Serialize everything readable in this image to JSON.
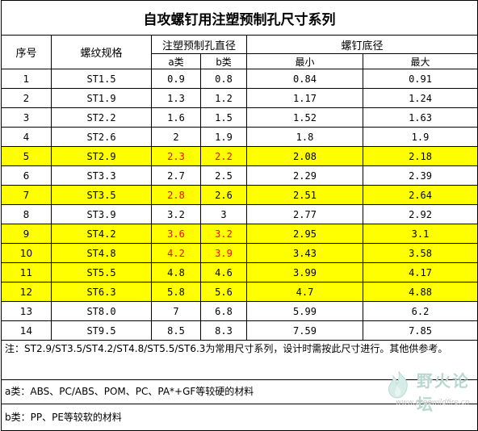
{
  "title": "自攻螺钉用注塑预制孔尺寸系列",
  "headers": {
    "index": "序号",
    "spec": "螺纹规格",
    "hole_group": "注塑预制孔直径",
    "hole_a": "a类",
    "hole_b": "b类",
    "screw_group": "螺钉底径",
    "screw_min": "最小",
    "screw_max": "最大"
  },
  "highlight_color": "#ffff00",
  "emphasis_color": "#ff0000",
  "rows": [
    {
      "idx": "1",
      "spec": "ST1.5",
      "a": "0.9",
      "b": "0.8",
      "min": "0.84",
      "max": "0.91",
      "highlight": false,
      "red_a": false,
      "red_b": false
    },
    {
      "idx": "2",
      "spec": "ST1.9",
      "a": "1.3",
      "b": "1.2",
      "min": "1.17",
      "max": "1.24",
      "highlight": false,
      "red_a": false,
      "red_b": false
    },
    {
      "idx": "3",
      "spec": "ST2.2",
      "a": "1.6",
      "b": "1.5",
      "min": "1.52",
      "max": "1.63",
      "highlight": false,
      "red_a": false,
      "red_b": false
    },
    {
      "idx": "4",
      "spec": "ST2.6",
      "a": "2",
      "b": "1.9",
      "min": "1.8",
      "max": "1.9",
      "highlight": false,
      "red_a": false,
      "red_b": false
    },
    {
      "idx": "5",
      "spec": "ST2.9",
      "a": "2.3",
      "b": "2.2",
      "min": "2.08",
      "max": "2.18",
      "highlight": true,
      "red_a": true,
      "red_b": true
    },
    {
      "idx": "6",
      "spec": "ST3.3",
      "a": "2.7",
      "b": "2.5",
      "min": "2.29",
      "max": "2.39",
      "highlight": false,
      "red_a": false,
      "red_b": false
    },
    {
      "idx": "7",
      "spec": "ST3.5",
      "a": "2.8",
      "b": "2.6",
      "min": "2.51",
      "max": "2.64",
      "highlight": true,
      "red_a": true,
      "red_b": false
    },
    {
      "idx": "8",
      "spec": "ST3.9",
      "a": "3.2",
      "b": "3",
      "min": "2.77",
      "max": "2.92",
      "highlight": false,
      "red_a": false,
      "red_b": false
    },
    {
      "idx": "9",
      "spec": "ST4.2",
      "a": "3.6",
      "b": "3.2",
      "min": "2.95",
      "max": "3.1",
      "highlight": true,
      "red_a": true,
      "red_b": true
    },
    {
      "idx": "10",
      "spec": "ST4.8",
      "a": "4.2",
      "b": "3.9",
      "min": "3.43",
      "max": "3.58",
      "highlight": true,
      "red_a": true,
      "red_b": true
    },
    {
      "idx": "11",
      "spec": "ST5.5",
      "a": "4.8",
      "b": "4.6",
      "min": "3.99",
      "max": "4.17",
      "highlight": true,
      "red_a": false,
      "red_b": false
    },
    {
      "idx": "12",
      "spec": "ST6.3",
      "a": "5.8",
      "b": "5.6",
      "min": "4.7",
      "max": "4.88",
      "highlight": true,
      "red_a": false,
      "red_b": false
    },
    {
      "idx": "13",
      "spec": "ST8.0",
      "a": "7",
      "b": "6.8",
      "min": "5.99",
      "max": "6.2",
      "highlight": false,
      "red_a": false,
      "red_b": false
    },
    {
      "idx": "14",
      "spec": "ST9.5",
      "a": "8.5",
      "b": "8.3",
      "min": "7.59",
      "max": "7.85",
      "highlight": false,
      "red_a": false,
      "red_b": false
    }
  ],
  "notes": {
    "note1": "注：ST2.9/ST3.5/ST4.2/ST4.8/ST5.5/ST6.3为常用尺寸系列，设计时需按此尺寸进行。其他供参考。",
    "note2": "a类：ABS、PC/ABS、POM、PC、PA*+GF等较硬的材料",
    "note3": "b类：PP、PE等较软的材料"
  },
  "watermark": {
    "title": "野火论坛",
    "url": "www.proewildfire.cn",
    "icon": "flame-logo-icon",
    "color": "#b7d7cf"
  }
}
